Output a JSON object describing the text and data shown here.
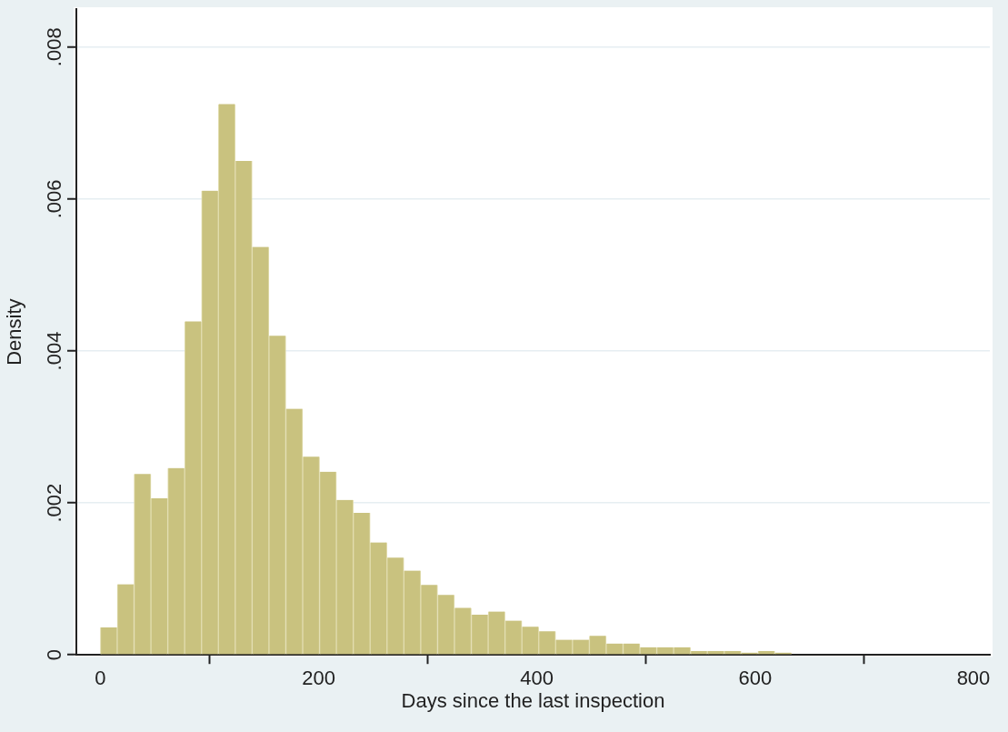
{
  "chart_data": {
    "type": "histogram",
    "xlabel": "Days since the last inspection",
    "ylabel": "Density",
    "bins": [
      0,
      15.45,
      30.9,
      46.35,
      61.8,
      77.25,
      92.7,
      108.15,
      123.6,
      139.05,
      154.5,
      169.95,
      185.4,
      200.85,
      216.3,
      231.75,
      247.2,
      262.65,
      278.1,
      293.55,
      309,
      324.45,
      339.9,
      355.35,
      370.8,
      386.25,
      401.7,
      417.15,
      432.6,
      448.05,
      463.5,
      478.95,
      494.4,
      509.85,
      525.3,
      540.75,
      556.2,
      571.65,
      587.1,
      602.55,
      618,
      633.45
    ],
    "values": [
      0.00036,
      0.00093,
      0.00238,
      0.00206,
      0.00246,
      0.00439,
      0.00611,
      0.00725,
      0.0065,
      0.00537,
      0.0042,
      0.00324,
      0.00261,
      0.00241,
      0.00204,
      0.00187,
      0.00148,
      0.00128,
      0.00111,
      0.00092,
      0.00079,
      0.00062,
      0.00053,
      0.00057,
      0.00045,
      0.00037,
      0.00031,
      0.0002,
      0.0002,
      0.00025,
      0.00015,
      0.00015,
      0.0001,
      0.0001,
      0.0001,
      5e-05,
      5e-05,
      5e-05,
      3e-05,
      5e-05,
      3e-05
    ],
    "color": "#c9c27f",
    "xlim": [
      -22,
      815
    ],
    "xticks": [
      0,
      200,
      400,
      600,
      800
    ],
    "ylim": [
      0,
      0.0085
    ],
    "yticks": [
      0,
      {
        "value": 0.002,
        "label": ".002"
      },
      {
        "value": 0.004,
        "label": ".004"
      },
      {
        "value": 0.006,
        "label": ".006"
      },
      {
        "value": 0.008,
        "label": ".008"
      }
    ],
    "grid": "y"
  }
}
